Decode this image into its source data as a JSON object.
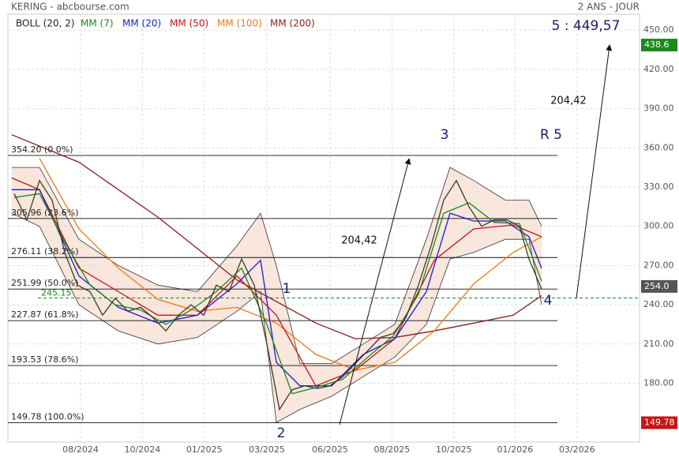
{
  "chart_data": {
    "type": "line",
    "title": "KERING - abcbourse.com",
    "subtitle": "2 ANS - JOUR",
    "xlim": [
      0,
      100
    ],
    "xticks": [
      {
        "value": 11.5,
        "label": "08/2024"
      },
      {
        "value": 21.3,
        "label": "10/2024"
      },
      {
        "value": 31.1,
        "label": "01/2025"
      },
      {
        "value": 41,
        "label": "03/2025"
      },
      {
        "value": 51,
        "label": "06/2025"
      },
      {
        "value": 60.8,
        "label": "08/2025"
      },
      {
        "value": 70.6,
        "label": "10/2025"
      },
      {
        "value": 80.3,
        "label": "01/2026"
      },
      {
        "value": 90.1,
        "label": "03/2026"
      }
    ],
    "ylim": [
      135,
      464
    ],
    "yticks": [
      {
        "value": 180,
        "label": "180.00"
      },
      {
        "value": 210,
        "label": "210.00"
      },
      {
        "value": 240,
        "label": "240.00"
      },
      {
        "value": 270,
        "label": "270.00"
      },
      {
        "value": 300,
        "label": "300.00"
      },
      {
        "value": 330,
        "label": "330.00"
      },
      {
        "value": 360,
        "label": "360.00"
      },
      {
        "value": 390,
        "label": "390.00"
      },
      {
        "value": 420,
        "label": "420.00"
      },
      {
        "value": 450,
        "label": "450.00"
      }
    ],
    "grid": true,
    "bands": {
      "name": "BOLL (20, 2)",
      "color": "#f5d5c5",
      "x": [
        0.6,
        5,
        11.25,
        17.5,
        23.75,
        30,
        36.25,
        40,
        42.5,
        46.25,
        51.25,
        56.25,
        61.25,
        66.25,
        70,
        73.75,
        78.75,
        82.5,
        84.5
      ],
      "upper": [
        345,
        345,
        290,
        270,
        255,
        250,
        285,
        310,
        270,
        195,
        195,
        210,
        225,
        290,
        345,
        335,
        320,
        320,
        300
      ],
      "lower": [
        310,
        300,
        240,
        220,
        210,
        215,
        235,
        250,
        150,
        160,
        170,
        185,
        200,
        225,
        275,
        280,
        290,
        290,
        240
      ]
    },
    "price": {
      "color": "#3a3a2a",
      "x": [
        1,
        3,
        5,
        7,
        9,
        11,
        13,
        15,
        17,
        19,
        21,
        23,
        25,
        27,
        29,
        31,
        33,
        35,
        37,
        39,
        41,
        43,
        45,
        47,
        49,
        51,
        53,
        55,
        57,
        59,
        61,
        63,
        65,
        67,
        69,
        71,
        73,
        75,
        77,
        79,
        81,
        82.5,
        84.5
      ],
      "values": [
        325,
        305,
        335,
        320,
        280,
        255,
        250,
        232,
        245,
        235,
        238,
        230,
        220,
        232,
        240,
        232,
        255,
        250,
        275,
        255,
        210,
        160,
        175,
        178,
        176,
        178,
        185,
        195,
        205,
        215,
        218,
        230,
        255,
        285,
        320,
        335,
        315,
        300,
        305,
        305,
        300,
        275,
        252
      ]
    },
    "series": [
      {
        "name": "MM (7)",
        "color": "#1a8a1a",
        "x": [
          1,
          5,
          9,
          13,
          17,
          21,
          25,
          29,
          33,
          37,
          41,
          45,
          49,
          53,
          57,
          61,
          65,
          69,
          73,
          77,
          81,
          84.5
        ],
        "values": [
          322,
          325,
          288,
          255,
          240,
          236,
          225,
          236,
          250,
          268,
          225,
          172,
          177,
          183,
          200,
          216,
          248,
          310,
          318,
          303,
          302,
          258
        ]
      },
      {
        "name": "MM (20)",
        "color": "#1a1ad0",
        "x": [
          0.6,
          5,
          11.25,
          17.5,
          23.75,
          30,
          36.25,
          40,
          42.5,
          46.25,
          51.25,
          56.25,
          61.25,
          66.25,
          70,
          73.75,
          78.75,
          82.5,
          84.5
        ],
        "values": [
          328,
          328,
          262,
          238,
          226,
          232,
          256,
          274,
          196,
          178,
          178,
          202,
          214,
          250,
          310,
          304,
          304,
          292,
          268
        ]
      },
      {
        "name": "MM (50)",
        "color": "#c81414",
        "x": [
          0.6,
          5,
          11.25,
          17.5,
          23.75,
          30,
          36.25,
          42.5,
          48.75,
          55,
          61.25,
          67.5,
          73.75,
          80,
          84.5
        ],
        "values": [
          337,
          328,
          268,
          250,
          232,
          232,
          262,
          232,
          178,
          190,
          214,
          274,
          298,
          301,
          292
        ]
      },
      {
        "name": "MM (100)",
        "color": "#f07818",
        "x": [
          5,
          11.25,
          17.5,
          23.75,
          30,
          36.25,
          42.5,
          48.75,
          55,
          61.25,
          67.5,
          73.75,
          80,
          84.5
        ],
        "values": [
          352,
          298,
          268,
          244,
          235,
          238,
          226,
          202,
          190,
          196,
          220,
          256,
          280,
          292
        ]
      },
      {
        "name": "MM (200)",
        "color": "#8b1a1a",
        "x": [
          0.6,
          11.25,
          23.75,
          36.25,
          48.75,
          55,
          61.25,
          67.5,
          73.75,
          80,
          84.5
        ],
        "values": [
          370,
          349,
          307,
          259,
          226,
          214,
          215,
          220,
          226,
          232,
          247
        ]
      }
    ],
    "fib_levels": [
      {
        "value": 354.2,
        "label": "354.20  (0.0%)"
      },
      {
        "value": 305.96,
        "label": "305.96  (23.6%)"
      },
      {
        "value": 276.11,
        "label": "276.11  (38.2%)"
      },
      {
        "value": 251.99,
        "label": "251.99  (50.0%)"
      },
      {
        "value": 227.87,
        "label": "227.87  (61.8%)"
      },
      {
        "value": 193.53,
        "label": "193.53  (78.6%)"
      },
      {
        "value": 149.78,
        "label": "149.78  (100.0%)"
      }
    ],
    "support": {
      "value": 245.15,
      "color": "#1a8a1a"
    },
    "price_tags": [
      {
        "value": 438.6,
        "color": "#1a8a1a"
      },
      {
        "value": 254.0,
        "label": "254.0",
        "color": "#555555"
      },
      {
        "value": 149.78,
        "color": "#c81414"
      }
    ],
    "annotations": [
      "1",
      "2",
      "3",
      "4",
      "R 5",
      "5 : 449,57",
      "204,42",
      "204,42"
    ]
  }
}
